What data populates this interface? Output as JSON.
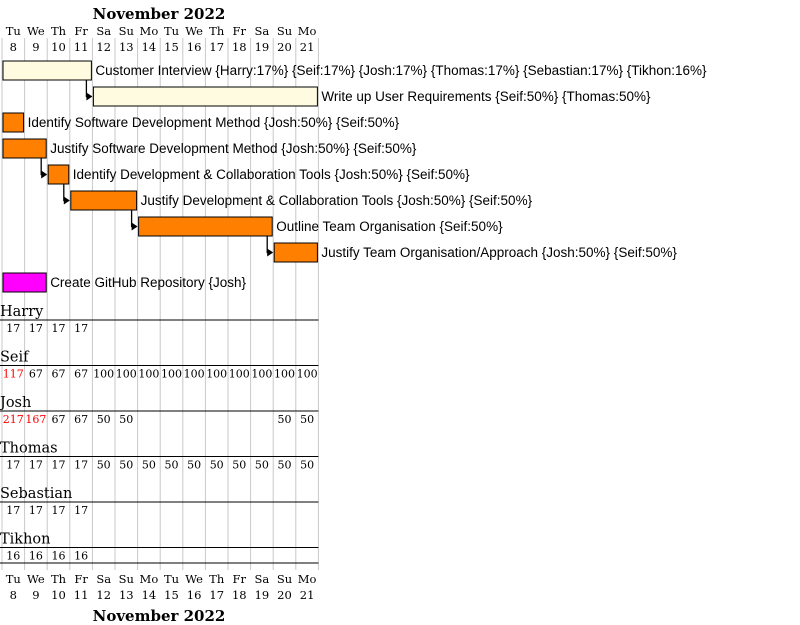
{
  "month_title": "November 2022",
  "days": [
    {
      "dow": "Tu",
      "num": "8"
    },
    {
      "dow": "We",
      "num": "9"
    },
    {
      "dow": "Th",
      "num": "10"
    },
    {
      "dow": "Fr",
      "num": "11"
    },
    {
      "dow": "Sa",
      "num": "12"
    },
    {
      "dow": "Su",
      "num": "13"
    },
    {
      "dow": "Mo",
      "num": "14"
    },
    {
      "dow": "Tu",
      "num": "15"
    },
    {
      "dow": "We",
      "num": "16"
    },
    {
      "dow": "Th",
      "num": "17"
    },
    {
      "dow": "Fr",
      "num": "18"
    },
    {
      "dow": "Sa",
      "num": "19"
    },
    {
      "dow": "Su",
      "num": "20"
    },
    {
      "dow": "Mo",
      "num": "21"
    }
  ],
  "colors": {
    "task_default": "#ff8000",
    "task_highlight": "#fffbe0",
    "task_github": "#ff00ff",
    "overload": "#ff0000",
    "normal": "#000000"
  },
  "tasks": [
    {
      "label": "Customer Interview {Harry:17%} {Seif:17%} {Josh:17%} {Thomas:17%} {Sebastian:17%} {Tikhon:16%}",
      "start": 0,
      "end": 4,
      "style": "highlight",
      "dep": null
    },
    {
      "label": "Write up User Requirements {Seif:50%} {Thomas:50%}",
      "start": 4,
      "end": 14,
      "style": "highlight",
      "dep": 0
    },
    {
      "label": "Identify Software Development Method {Josh:50%} {Seif:50%}",
      "start": 0,
      "end": 1,
      "style": "default",
      "dep": null
    },
    {
      "label": "Justify Software Development Method {Josh:50%} {Seif:50%}",
      "start": 0,
      "end": 2,
      "style": "default",
      "dep": null
    },
    {
      "label": "Identify Development & Collaboration Tools {Josh:50%} {Seif:50%}",
      "start": 2,
      "end": 3,
      "style": "default",
      "dep": 3
    },
    {
      "label": "Justify Development & Collaboration Tools {Josh:50%} {Seif:50%}",
      "start": 3,
      "end": 6,
      "style": "default",
      "dep": 4
    },
    {
      "label": "Outline Team Organisation {Seif:50%}",
      "start": 6,
      "end": 12,
      "style": "default",
      "dep": 5
    },
    {
      "label": "Justify Team Organisation/Approach {Josh:50%} {Seif:50%}",
      "start": 12,
      "end": 14,
      "style": "default",
      "dep": 6
    },
    {
      "label": "Create GitHub Repository {Josh}",
      "start": 0,
      "end": 2,
      "style": "github",
      "dep": null
    }
  ],
  "resources": [
    {
      "name": "Harry",
      "values": [
        "17",
        "17",
        "17",
        "17",
        "",
        "",
        "",
        "",
        "",
        "",
        "",
        "",
        "",
        ""
      ],
      "over": []
    },
    {
      "name": "Seif",
      "values": [
        "117",
        "67",
        "67",
        "67",
        "100",
        "100",
        "100",
        "100",
        "100",
        "100",
        "100",
        "100",
        "100",
        "100"
      ],
      "over": [
        0
      ]
    },
    {
      "name": "Josh",
      "values": [
        "217",
        "167",
        "67",
        "67",
        "50",
        "50",
        "",
        "",
        "",
        "",
        "",
        "",
        "50",
        "50"
      ],
      "over": [
        0,
        1
      ]
    },
    {
      "name": "Thomas",
      "values": [
        "17",
        "17",
        "17",
        "17",
        "50",
        "50",
        "50",
        "50",
        "50",
        "50",
        "50",
        "50",
        "50",
        "50"
      ],
      "over": []
    },
    {
      "name": "Sebastian",
      "values": [
        "17",
        "17",
        "17",
        "17",
        "",
        "",
        "",
        "",
        "",
        "",
        "",
        "",
        "",
        ""
      ],
      "over": []
    },
    {
      "name": "Tikhon",
      "values": [
        "16",
        "16",
        "16",
        "16",
        "",
        "",
        "",
        "",
        "",
        "",
        "",
        "",
        "",
        ""
      ],
      "over": []
    }
  ]
}
